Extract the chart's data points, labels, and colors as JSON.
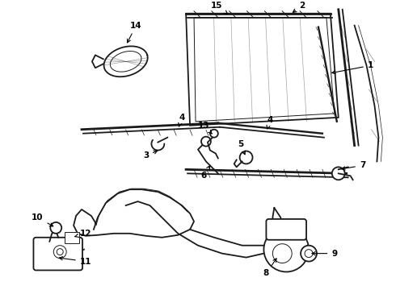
{
  "bg_color": "#ffffff",
  "line_color": "#1a1a1a",
  "label_color": "#000000",
  "label_font": 7.5,
  "lw_main": 1.3,
  "lw_thin": 0.7,
  "lw_thick": 2.0
}
